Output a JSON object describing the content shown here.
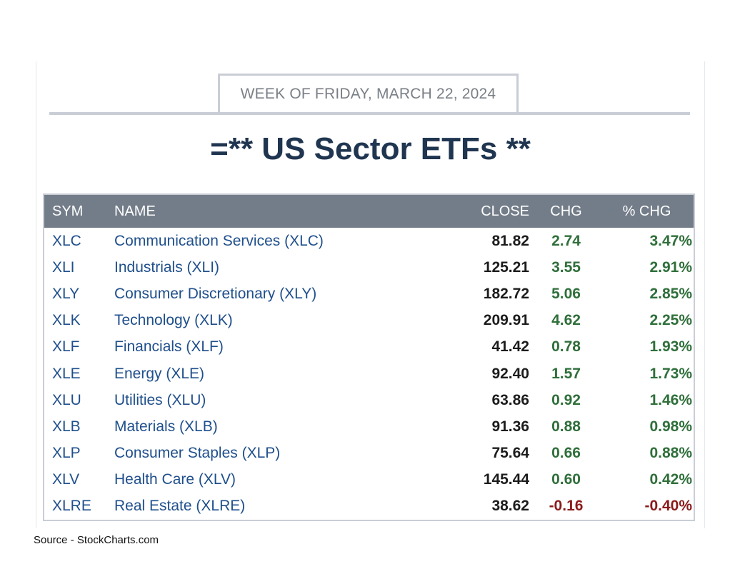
{
  "header": {
    "week_label": "WEEK OF FRIDAY, MARCH 22, 2024",
    "title": "=** US Sector ETFs **"
  },
  "colors": {
    "positive": "#2f6f3a",
    "negative": "#8b1a1a",
    "header_bg": "#737d89",
    "link_blue": "#1f4f8c"
  },
  "table": {
    "columns": [
      "SYM",
      "NAME",
      "CLOSE",
      "CHG",
      "% CHG"
    ],
    "rows": [
      {
        "sym": "XLC",
        "name": "Communication Services (XLC)",
        "close": "81.82",
        "chg": "2.74",
        "pct": "3.47%",
        "dir": "pos"
      },
      {
        "sym": "XLI",
        "name": "Industrials (XLI)",
        "close": "125.21",
        "chg": "3.55",
        "pct": "2.91%",
        "dir": "pos"
      },
      {
        "sym": "XLY",
        "name": "Consumer Discretionary (XLY)",
        "close": "182.72",
        "chg": "5.06",
        "pct": "2.85%",
        "dir": "pos"
      },
      {
        "sym": "XLK",
        "name": "Technology (XLK)",
        "close": "209.91",
        "chg": "4.62",
        "pct": "2.25%",
        "dir": "pos"
      },
      {
        "sym": "XLF",
        "name": "Financials (XLF)",
        "close": "41.42",
        "chg": "0.78",
        "pct": "1.93%",
        "dir": "pos"
      },
      {
        "sym": "XLE",
        "name": "Energy (XLE)",
        "close": "92.40",
        "chg": "1.57",
        "pct": "1.73%",
        "dir": "pos"
      },
      {
        "sym": "XLU",
        "name": "Utilities (XLU)",
        "close": "63.86",
        "chg": "0.92",
        "pct": "1.46%",
        "dir": "pos"
      },
      {
        "sym": "XLB",
        "name": "Materials (XLB)",
        "close": "91.36",
        "chg": "0.88",
        "pct": "0.98%",
        "dir": "pos"
      },
      {
        "sym": "XLP",
        "name": "Consumer Staples (XLP)",
        "close": "75.64",
        "chg": "0.66",
        "pct": "0.88%",
        "dir": "pos"
      },
      {
        "sym": "XLV",
        "name": "Health Care (XLV)",
        "close": "145.44",
        "chg": "0.60",
        "pct": "0.42%",
        "dir": "pos"
      },
      {
        "sym": "XLRE",
        "name": "Real Estate (XLRE)",
        "close": "38.62",
        "chg": "-0.16",
        "pct": "-0.40%",
        "dir": "neg"
      }
    ]
  },
  "footer": {
    "source": "Source - StockCharts.com"
  }
}
